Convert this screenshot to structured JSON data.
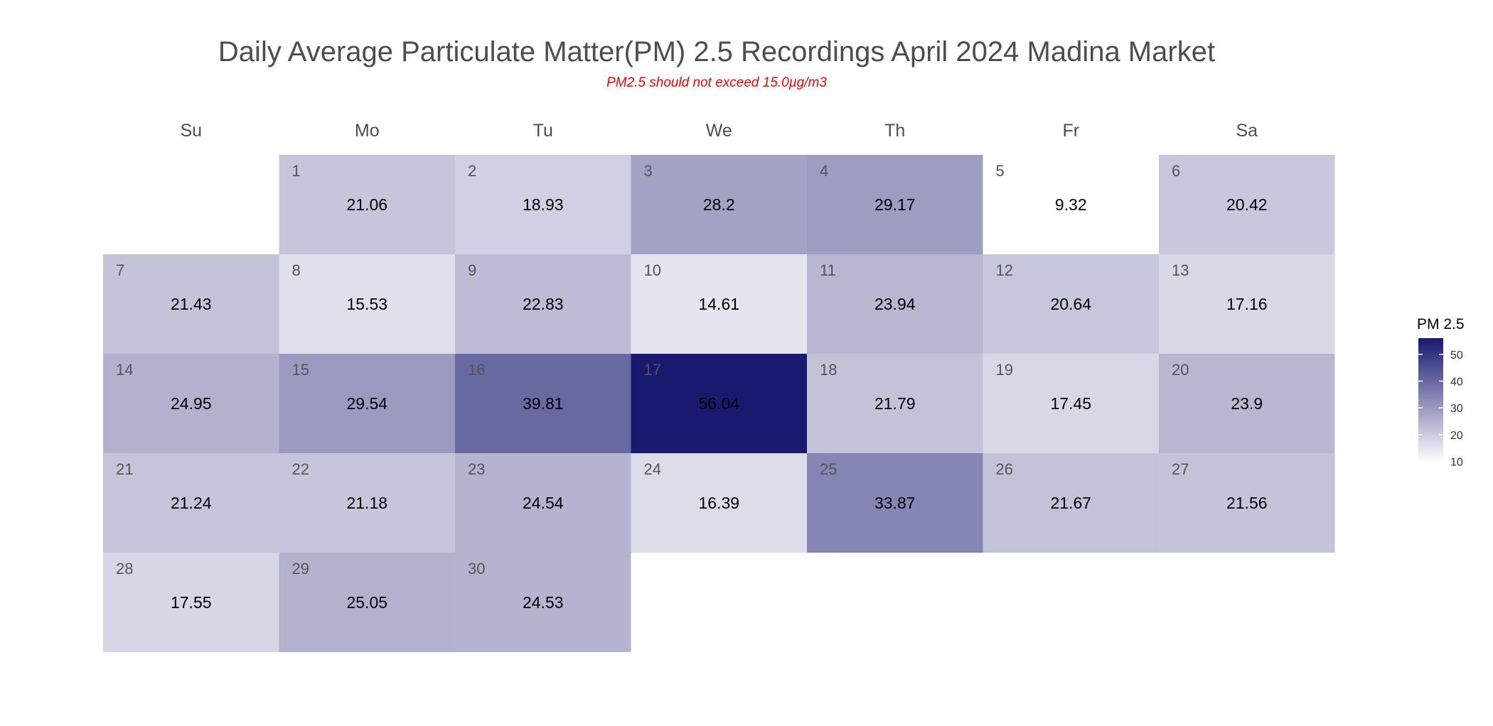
{
  "chart_data": {
    "type": "heatmap",
    "title": "Daily Average Particulate Matter(PM) 2.5 Recordings April 2024 Madina Market",
    "subtitle": "PM2.5 should not exceed 15.0µg/m3",
    "weekdays": [
      "Su",
      "Mo",
      "Tu",
      "We",
      "Th",
      "Fr",
      "Sa"
    ],
    "first_weekday_index": 1,
    "days": [
      {
        "day": "1",
        "value": 21.06,
        "label": "21.06"
      },
      {
        "day": "2",
        "value": 18.93,
        "label": "18.93"
      },
      {
        "day": "3",
        "value": 28.2,
        "label": "28.2"
      },
      {
        "day": "4",
        "value": 29.17,
        "label": "29.17"
      },
      {
        "day": "5",
        "value": 9.32,
        "label": "9.32"
      },
      {
        "day": "6",
        "value": 20.42,
        "label": "20.42"
      },
      {
        "day": "7",
        "value": 21.43,
        "label": "21.43"
      },
      {
        "day": "8",
        "value": 15.53,
        "label": "15.53"
      },
      {
        "day": "9",
        "value": 22.83,
        "label": "22.83"
      },
      {
        "day": "10",
        "value": 14.61,
        "label": "14.61"
      },
      {
        "day": "11",
        "value": 23.94,
        "label": "23.94"
      },
      {
        "day": "12",
        "value": 20.64,
        "label": "20.64"
      },
      {
        "day": "13",
        "value": 17.16,
        "label": "17.16"
      },
      {
        "day": "14",
        "value": 24.95,
        "label": "24.95"
      },
      {
        "day": "15",
        "value": 29.54,
        "label": "29.54"
      },
      {
        "day": "16",
        "value": 39.81,
        "label": "39.81"
      },
      {
        "day": "17",
        "value": 56.04,
        "label": "56.04"
      },
      {
        "day": "18",
        "value": 21.79,
        "label": "21.79"
      },
      {
        "day": "19",
        "value": 17.45,
        "label": "17.45"
      },
      {
        "day": "20",
        "value": 23.9,
        "label": "23.9"
      },
      {
        "day": "21",
        "value": 21.24,
        "label": "21.24"
      },
      {
        "day": "22",
        "value": 21.18,
        "label": "21.18"
      },
      {
        "day": "23",
        "value": 24.54,
        "label": "24.54"
      },
      {
        "day": "24",
        "value": 16.39,
        "label": "16.39"
      },
      {
        "day": "25",
        "value": 33.87,
        "label": "33.87"
      },
      {
        "day": "26",
        "value": 21.67,
        "label": "21.67"
      },
      {
        "day": "27",
        "value": 21.56,
        "label": "21.56"
      },
      {
        "day": "28",
        "value": 17.55,
        "label": "17.55"
      },
      {
        "day": "29",
        "value": 25.05,
        "label": "25.05"
      },
      {
        "day": "30",
        "value": 24.53,
        "label": "24.53"
      }
    ],
    "legend": {
      "title": "PM 2.5",
      "placement": "right",
      "ticks": [
        "10",
        "20",
        "30",
        "40",
        "50"
      ],
      "range": [
        9.32,
        56.04
      ]
    },
    "color_scale": {
      "low": "#ffffff",
      "high": "#191970"
    }
  }
}
